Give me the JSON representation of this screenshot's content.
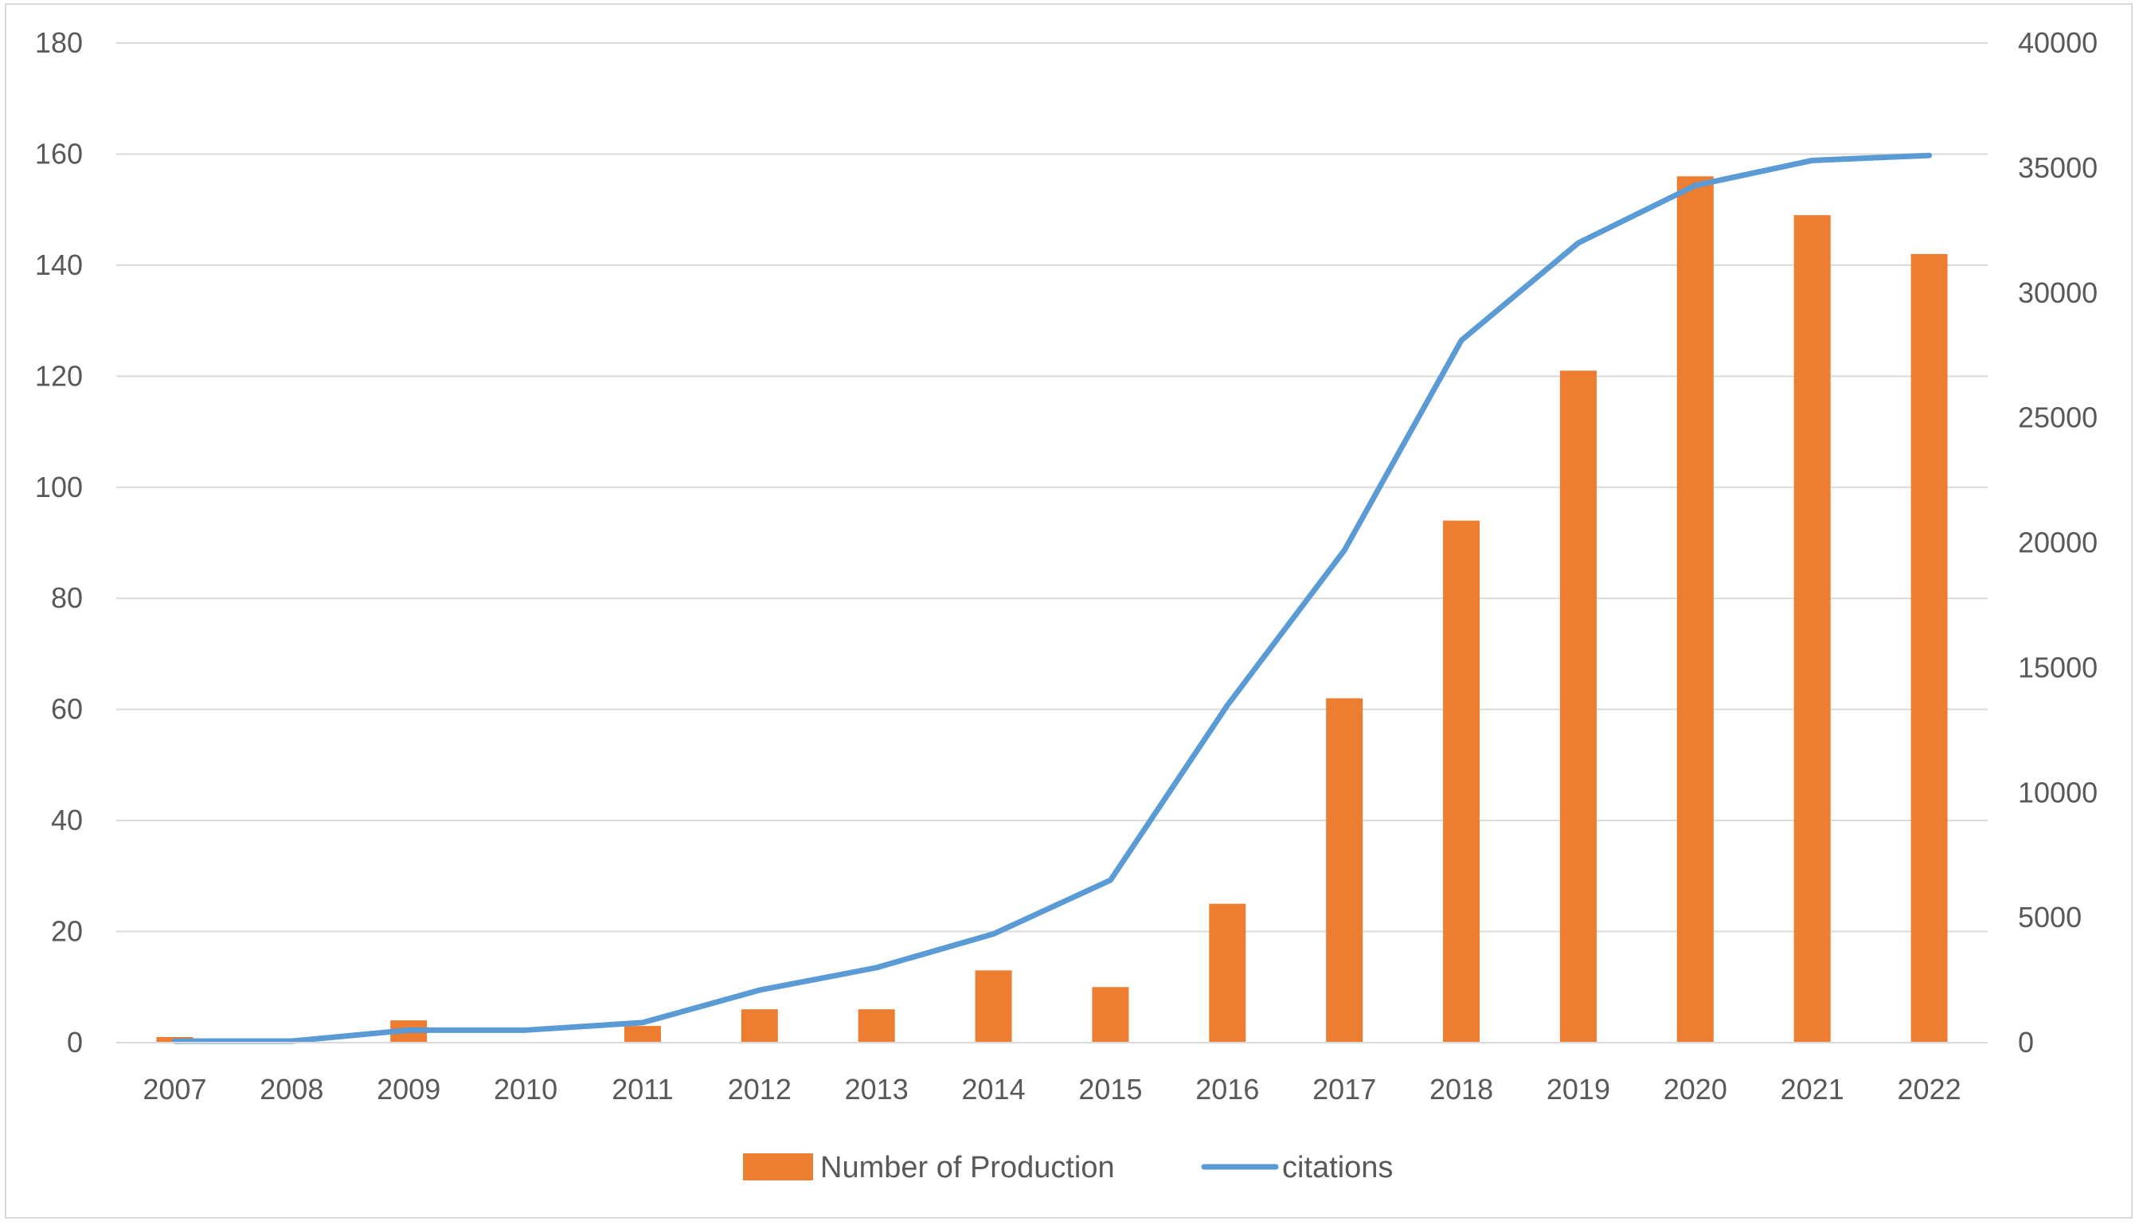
{
  "chart_data": {
    "type": "bar",
    "title": "",
    "categories": [
      "2007",
      "2008",
      "2009",
      "2010",
      "2011",
      "2012",
      "2013",
      "2014",
      "2015",
      "2016",
      "2017",
      "2018",
      "2019",
      "2020",
      "2021",
      "2022"
    ],
    "series": [
      {
        "name": "Number of Production",
        "type": "bar",
        "axis": "left",
        "color": "#ED7D31",
        "values": [
          1,
          0,
          4,
          0,
          3,
          6,
          6,
          13,
          10,
          25,
          62,
          94,
          121,
          156,
          149,
          142
        ]
      },
      {
        "name": "citations",
        "type": "line",
        "axis": "right",
        "color": "#5B9BD5",
        "values": [
          60,
          60,
          500,
          500,
          800,
          2100,
          3000,
          4350,
          6500,
          13500,
          19700,
          28100,
          32000,
          34300,
          35300,
          35500
        ]
      }
    ],
    "y_left": {
      "ylim": [
        0,
        180
      ],
      "ticks": [
        "0",
        "20",
        "40",
        "60",
        "80",
        "100",
        "120",
        "140",
        "160",
        "180"
      ]
    },
    "y_right": {
      "ylim": [
        0,
        40000
      ],
      "ticks": [
        "0",
        "5000",
        "10000",
        "15000",
        "20000",
        "25000",
        "30000",
        "35000",
        "40000"
      ]
    },
    "grid": true,
    "legend": "bottom-center",
    "gridline_color": "#d9d9d9",
    "axis_color": "#d9d9d9",
    "text_color": "#595959"
  }
}
